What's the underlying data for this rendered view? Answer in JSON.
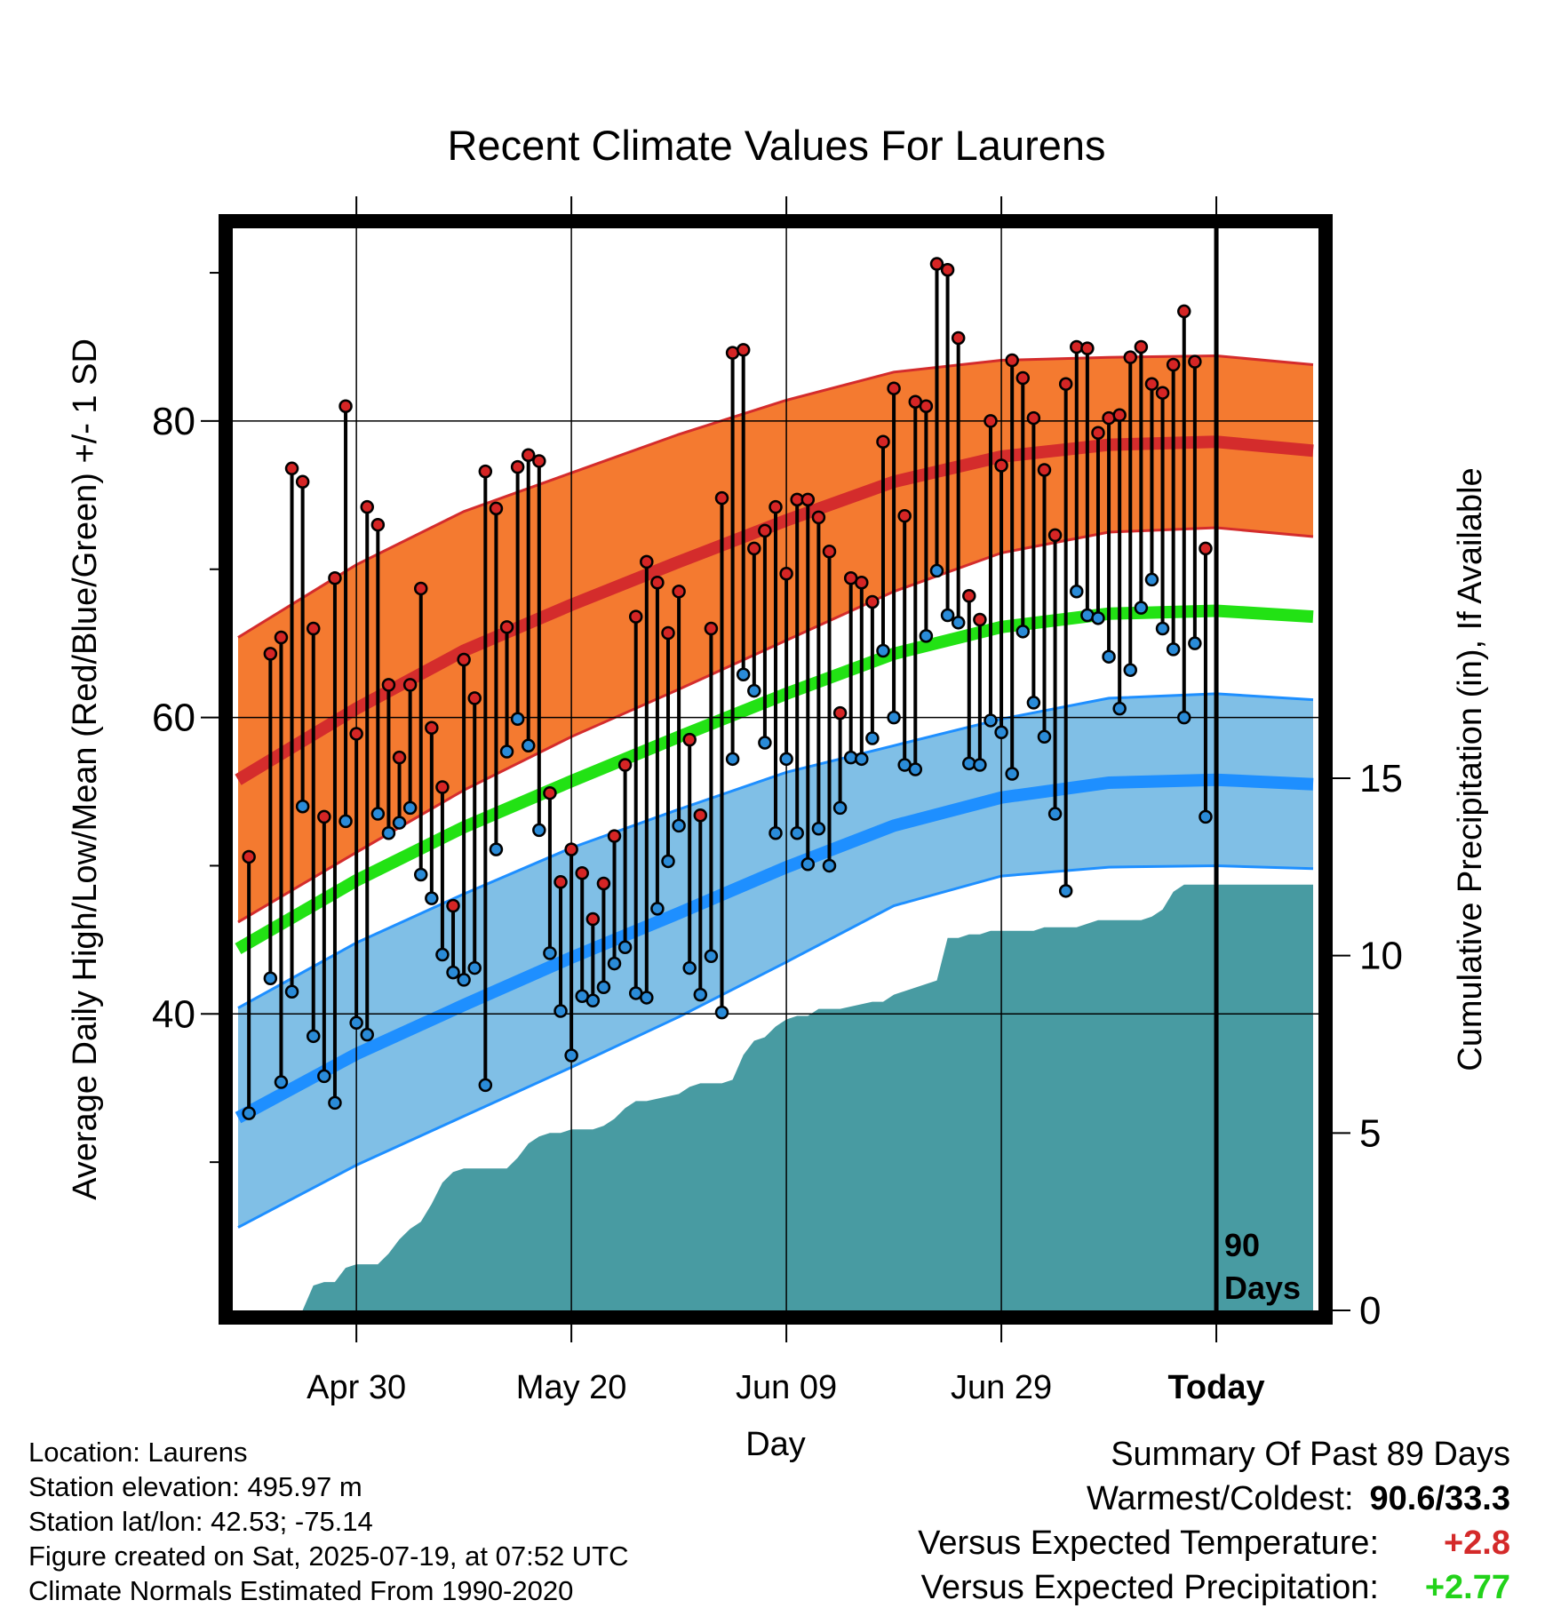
{
  "chart_data": {
    "type": "line",
    "title": "Recent Climate Values For Laurens",
    "xlabel": "Day",
    "ylabel": "Average Daily High/Low/Mean (Red/Blue/Green) +/- 1 SD",
    "y2label": "Cumulative Precipitation (in), If Available",
    "x_tick_labels": [
      "Apr 30",
      "May 20",
      "Jun 09",
      "Jun 29",
      "Today"
    ],
    "x_tick_days": [
      -80,
      -60,
      -40,
      -20,
      0
    ],
    "x_range_days": [
      -91.5,
      9.5
    ],
    "ylim": [
      20,
      93
    ],
    "yticks": [
      40,
      60,
      80
    ],
    "y2lim": [
      0,
      30.5
    ],
    "y2ticks": [
      0,
      5,
      10,
      15
    ],
    "today_marker_label": [
      "90",
      "Days"
    ],
    "grid": true,
    "colors": {
      "high_band": "#f47a30",
      "high_line": "#d42c2c",
      "high_edge": "#d42c2c",
      "low_band": "#80bfe6",
      "low_line": "#1e8fff",
      "low_edge": "#1e8fff",
      "mean_line": "#22e214",
      "precip": "#489ba2",
      "point_high": "#d52525",
      "point_low": "#2a8bd8"
    },
    "normal_days": [
      -91,
      -80,
      -70,
      -60,
      -50,
      -40,
      -30,
      -20,
      -10,
      0,
      9
    ],
    "normal_high": [
      55.8,
      60.6,
      64.5,
      67.6,
      70.5,
      73.3,
      75.9,
      77.6,
      78.4,
      78.6,
      78.0
    ],
    "normal_high_sd": [
      9.6,
      9.7,
      9.4,
      8.9,
      8.6,
      8.1,
      7.4,
      6.5,
      5.9,
      5.8,
      5.8
    ],
    "normal_low": [
      33.0,
      37.3,
      40.6,
      43.8,
      46.8,
      49.9,
      52.7,
      54.6,
      55.6,
      55.8,
      55.5
    ],
    "normal_low_sd": [
      7.4,
      7.5,
      7.5,
      7.4,
      7.0,
      6.4,
      5.4,
      5.3,
      5.7,
      5.8,
      5.7
    ],
    "normal_mean": [
      44.4,
      49.0,
      52.6,
      55.7,
      58.7,
      61.6,
      64.3,
      66.1,
      67.0,
      67.2,
      66.8
    ],
    "days": [
      -90,
      -89,
      -88,
      -87,
      -86,
      -85,
      -84,
      -83,
      -82,
      -81,
      -80,
      -79,
      -78,
      -77,
      -76,
      -75,
      -74,
      -73,
      -72,
      -71,
      -70,
      -69,
      -68,
      -67,
      -66,
      -65,
      -64,
      -63,
      -62,
      -61,
      -60,
      -59,
      -58,
      -57,
      -56,
      -55,
      -54,
      -53,
      -52,
      -51,
      -50,
      -49,
      -48,
      -47,
      -46,
      -45,
      -44,
      -43,
      -42,
      -41,
      -40,
      -39,
      -38,
      -37,
      -36,
      -35,
      -34,
      -33,
      -32,
      -31,
      -30,
      -29,
      -28,
      -27,
      -26,
      -25,
      -24,
      -23,
      -22,
      -21,
      -20,
      -19,
      -18,
      -17,
      -16,
      -15,
      -14,
      -13,
      -12,
      -11,
      -10,
      -9,
      -8,
      -7,
      -6,
      -5,
      -4,
      -3,
      -2,
      -1
    ],
    "highs": [
      50.6,
      null,
      64.3,
      65.4,
      76.8,
      75.9,
      66.0,
      53.3,
      69.4,
      81.0,
      58.9,
      74.2,
      73.0,
      62.2,
      57.3,
      62.2,
      68.7,
      59.3,
      55.3,
      47.3,
      63.9,
      61.3,
      76.6,
      74.1,
      66.1,
      76.9,
      77.7,
      77.3,
      54.9,
      48.9,
      51.1,
      49.5,
      46.4,
      48.8,
      52.0,
      56.8,
      66.8,
      70.5,
      69.1,
      65.7,
      68.5,
      58.5,
      53.4,
      66.0,
      74.8,
      84.6,
      84.8,
      71.4,
      72.6,
      74.2,
      69.7,
      74.7,
      74.7,
      73.5,
      71.2,
      60.3,
      69.4,
      69.1,
      67.8,
      78.6,
      82.2,
      73.6,
      81.3,
      81.0,
      90.6,
      90.2,
      85.6,
      68.2,
      66.6,
      80.0,
      77.0,
      84.1,
      82.9,
      80.2,
      76.7,
      72.3,
      82.5,
      85.0,
      84.9,
      79.2,
      80.2,
      80.4,
      84.3,
      85.0,
      82.5,
      81.9,
      83.8,
      87.4,
      84.0,
      71.4
    ],
    "lows": [
      33.3,
      null,
      42.4,
      35.4,
      41.5,
      54.0,
      38.5,
      35.8,
      34.0,
      53.0,
      39.4,
      38.6,
      53.5,
      52.2,
      52.9,
      53.9,
      49.4,
      47.8,
      44.0,
      42.8,
      42.3,
      43.1,
      35.2,
      51.1,
      57.7,
      59.9,
      58.1,
      52.4,
      44.1,
      40.2,
      37.2,
      41.2,
      40.9,
      41.8,
      43.4,
      44.5,
      41.4,
      41.1,
      47.1,
      50.3,
      52.7,
      43.1,
      41.3,
      43.9,
      40.1,
      57.2,
      62.9,
      61.8,
      58.3,
      52.2,
      57.2,
      52.2,
      50.1,
      52.5,
      50.0,
      53.9,
      57.3,
      57.2,
      58.6,
      64.5,
      60.0,
      56.8,
      56.5,
      65.5,
      69.9,
      66.9,
      66.4,
      56.9,
      56.8,
      59.8,
      59.0,
      56.2,
      65.8,
      61.0,
      58.7,
      53.5,
      48.3,
      68.5,
      66.9,
      66.7,
      64.1,
      60.6,
      63.2,
      67.4,
      69.3,
      66.0,
      64.6,
      60.0,
      65.0,
      53.3
    ],
    "precip_days": [
      -90,
      -86,
      -85,
      -84,
      -83,
      -82,
      -81,
      -80,
      -78,
      -77,
      -76,
      -75,
      -74,
      -73,
      -72,
      -71,
      -70,
      -66,
      -65,
      -64,
      -63,
      -62,
      -61,
      -60,
      -59,
      -58,
      -57,
      -56,
      -55,
      -54,
      -53,
      -50,
      -49,
      -48,
      -47,
      -46,
      -45,
      -44,
      -43,
      -42,
      -41,
      -40,
      -39,
      -38,
      -37,
      -36,
      -35,
      -32,
      -31,
      -30,
      -29,
      -28,
      -27,
      -26,
      -25,
      -24,
      -23,
      -22,
      -21,
      -20,
      -19,
      -18,
      -17,
      -16,
      -15,
      -14,
      -13,
      -12,
      -11,
      -10,
      -9,
      -8,
      -7,
      -6,
      -5,
      -4,
      -3,
      -2,
      -1,
      0,
      9
    ],
    "precip_cum": [
      0,
      0,
      0,
      0.7,
      0.8,
      0.8,
      1.2,
      1.3,
      1.3,
      1.6,
      2.0,
      2.3,
      2.5,
      3.0,
      3.6,
      3.9,
      4.0,
      4.0,
      4.3,
      4.7,
      4.9,
      5.0,
      5.0,
      5.1,
      5.1,
      5.1,
      5.2,
      5.4,
      5.7,
      5.9,
      5.9,
      6.1,
      6.3,
      6.4,
      6.4,
      6.4,
      6.5,
      7.2,
      7.6,
      7.7,
      8.0,
      8.2,
      8.3,
      8.3,
      8.5,
      8.5,
      8.5,
      8.7,
      8.7,
      8.9,
      9.0,
      9.1,
      9.2,
      9.3,
      10.5,
      10.5,
      10.6,
      10.6,
      10.7,
      10.7,
      10.7,
      10.7,
      10.7,
      10.8,
      10.8,
      10.8,
      10.8,
      10.9,
      11.0,
      11.0,
      11.0,
      11.0,
      11.0,
      11.1,
      11.3,
      11.8,
      12.0,
      12.0,
      12.0,
      12.0,
      12.0
    ]
  },
  "info": {
    "location": "Location: Laurens",
    "elevation": "Station elevation: 495.97 m",
    "latlon": "Station lat/lon: 42.53; -75.14",
    "created": "Figure created on Sat, 2025-07-19, at 07:52 UTC",
    "normals": "Climate Normals Estimated From 1990-2020"
  },
  "summary": {
    "heading": "Summary Of Past 89 Days",
    "warm_cold_label": "Warmest/Coldest:",
    "warm_cold_value": "90.6/33.3",
    "temp_label": "Versus Expected Temperature:",
    "temp_value": "+2.8",
    "temp_color": "#d42a2a",
    "precip_label": "Versus Expected Precipitation:",
    "precip_value": "+2.77",
    "precip_color": "#22d21a"
  }
}
